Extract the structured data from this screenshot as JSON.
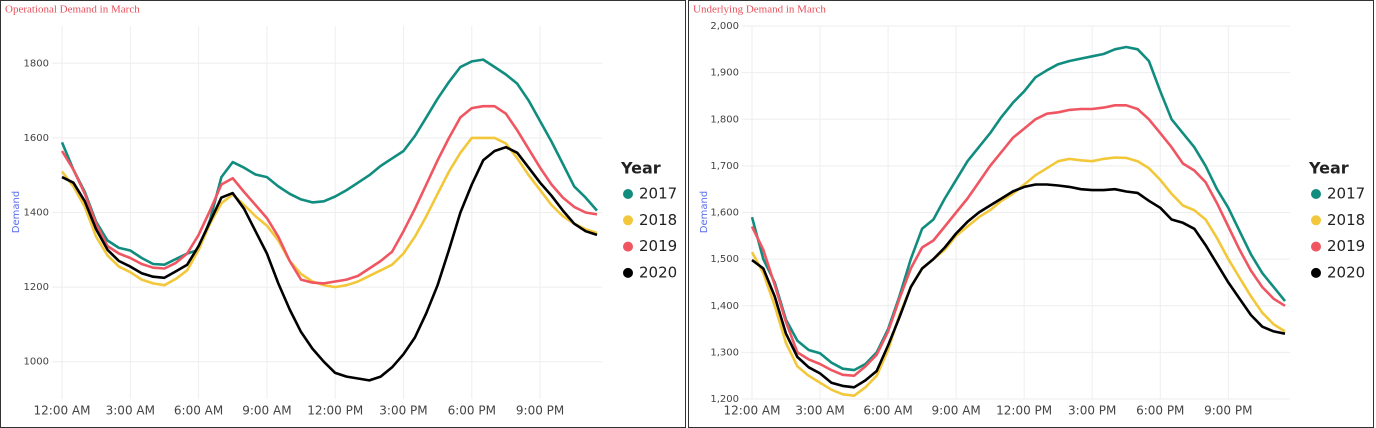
{
  "chart_data": [
    {
      "type": "line",
      "title": "Operational Demand in March",
      "y_label": "Demand",
      "legend_title": "Year",
      "categories": [
        "12:00 AM",
        null,
        null,
        null,
        null,
        null,
        "3:00 AM",
        null,
        null,
        null,
        null,
        null,
        "6:00 AM",
        null,
        null,
        null,
        null,
        null,
        "9:00 AM",
        null,
        null,
        null,
        null,
        null,
        "12:00 PM",
        null,
        null,
        null,
        null,
        null,
        "3:00 PM",
        null,
        null,
        null,
        null,
        null,
        "6:00 PM",
        null,
        null,
        null,
        null,
        null,
        "9:00 PM",
        null,
        null,
        null,
        null,
        null
      ],
      "ylim": [
        900,
        1900
      ],
      "yticks": [
        1000,
        1200,
        1400,
        1600,
        1800
      ],
      "grid": true,
      "series": [
        {
          "name": "2017",
          "color": "#118d80",
          "values": [
            1588,
            1515,
            1455,
            1375,
            1325,
            1305,
            1298,
            1278,
            1262,
            1260,
            1275,
            1290,
            1300,
            1380,
            1495,
            1535,
            1520,
            1502,
            1495,
            1470,
            1450,
            1435,
            1427,
            1430,
            1443,
            1460,
            1480,
            1500,
            1525,
            1545,
            1565,
            1605,
            1655,
            1705,
            1750,
            1790,
            1805,
            1810,
            1790,
            1770,
            1745,
            1700,
            1645,
            1590,
            1530,
            1470,
            1440,
            1405
          ]
        },
        {
          "name": "2018",
          "color": "#f2c83a",
          "values": [
            1510,
            1470,
            1415,
            1335,
            1285,
            1255,
            1240,
            1220,
            1210,
            1205,
            1222,
            1245,
            1300,
            1370,
            1425,
            1448,
            1420,
            1390,
            1365,
            1325,
            1270,
            1235,
            1215,
            1205,
            1200,
            1205,
            1215,
            1230,
            1245,
            1260,
            1290,
            1335,
            1390,
            1450,
            1510,
            1560,
            1600,
            1600,
            1600,
            1585,
            1545,
            1500,
            1460,
            1420,
            1390,
            1370,
            1355,
            1345
          ]
        },
        {
          "name": "2019",
          "color": "#ef5662",
          "values": [
            1565,
            1515,
            1450,
            1370,
            1310,
            1290,
            1278,
            1262,
            1252,
            1250,
            1265,
            1290,
            1340,
            1405,
            1475,
            1492,
            1455,
            1420,
            1385,
            1335,
            1270,
            1220,
            1212,
            1210,
            1215,
            1220,
            1230,
            1250,
            1270,
            1295,
            1350,
            1410,
            1475,
            1540,
            1600,
            1655,
            1680,
            1685,
            1685,
            1665,
            1620,
            1570,
            1520,
            1475,
            1440,
            1415,
            1400,
            1395
          ]
        },
        {
          "name": "2020",
          "color": "#000000",
          "values": [
            1495,
            1480,
            1430,
            1355,
            1300,
            1270,
            1255,
            1237,
            1228,
            1225,
            1242,
            1260,
            1310,
            1375,
            1440,
            1452,
            1410,
            1350,
            1290,
            1210,
            1140,
            1080,
            1035,
            1000,
            970,
            960,
            955,
            950,
            960,
            985,
            1020,
            1065,
            1130,
            1205,
            1300,
            1400,
            1475,
            1540,
            1565,
            1575,
            1560,
            1520,
            1480,
            1445,
            1405,
            1370,
            1350,
            1340
          ]
        }
      ]
    },
    {
      "type": "line",
      "title": "Underlying Demand in March",
      "y_label": "Demand",
      "legend_title": "Year",
      "categories": [
        "12:00 AM",
        null,
        null,
        null,
        null,
        null,
        "3:00 AM",
        null,
        null,
        null,
        null,
        null,
        "6:00 AM",
        null,
        null,
        null,
        null,
        null,
        "9:00 AM",
        null,
        null,
        null,
        null,
        null,
        "12:00 PM",
        null,
        null,
        null,
        null,
        null,
        "3:00 PM",
        null,
        null,
        null,
        null,
        null,
        "6:00 PM",
        null,
        null,
        null,
        null,
        null,
        "9:00 PM",
        null,
        null,
        null,
        null,
        null
      ],
      "ylim": [
        1200,
        2000
      ],
      "yticks": [
        {
          "value": 1200,
          "label": "1,200"
        },
        {
          "value": 1300,
          "label": "1,300"
        },
        {
          "value": 1400,
          "label": "1,400"
        },
        {
          "value": 1500,
          "label": "1,500"
        },
        {
          "value": 1600,
          "label": "1,600"
        },
        {
          "value": 1700,
          "label": "1,700"
        },
        {
          "value": 1800,
          "label": "1,800"
        },
        {
          "value": 1900,
          "label": "1,900"
        },
        {
          "value": 2000,
          "label": "2,000"
        }
      ],
      "grid": true,
      "series": [
        {
          "name": "2017",
          "color": "#118d80",
          "values": [
            1590,
            1500,
            1450,
            1370,
            1325,
            1305,
            1298,
            1278,
            1265,
            1262,
            1275,
            1300,
            1350,
            1420,
            1500,
            1565,
            1585,
            1630,
            1670,
            1710,
            1740,
            1770,
            1805,
            1835,
            1860,
            1890,
            1905,
            1918,
            1925,
            1930,
            1935,
            1940,
            1950,
            1955,
            1950,
            1925,
            1860,
            1800,
            1770,
            1740,
            1700,
            1650,
            1610,
            1560,
            1510,
            1470,
            1440,
            1410
          ]
        },
        {
          "name": "2018",
          "color": "#f2c83a",
          "values": [
            1515,
            1470,
            1400,
            1320,
            1270,
            1250,
            1235,
            1220,
            1210,
            1207,
            1225,
            1250,
            1305,
            1380,
            1440,
            1480,
            1500,
            1520,
            1550,
            1570,
            1590,
            1605,
            1625,
            1640,
            1660,
            1680,
            1695,
            1710,
            1715,
            1712,
            1710,
            1715,
            1718,
            1717,
            1710,
            1695,
            1670,
            1640,
            1615,
            1605,
            1585,
            1545,
            1500,
            1460,
            1420,
            1385,
            1360,
            1345
          ]
        },
        {
          "name": "2019",
          "color": "#ef5662",
          "values": [
            1570,
            1520,
            1445,
            1365,
            1300,
            1285,
            1275,
            1262,
            1252,
            1250,
            1270,
            1295,
            1345,
            1415,
            1480,
            1525,
            1540,
            1570,
            1600,
            1630,
            1665,
            1700,
            1730,
            1760,
            1780,
            1800,
            1812,
            1815,
            1820,
            1822,
            1822,
            1825,
            1830,
            1830,
            1822,
            1800,
            1770,
            1740,
            1705,
            1690,
            1665,
            1620,
            1570,
            1520,
            1475,
            1440,
            1415,
            1400
          ]
        },
        {
          "name": "2020",
          "color": "#000000",
          "values": [
            1498,
            1480,
            1420,
            1340,
            1290,
            1268,
            1255,
            1235,
            1228,
            1225,
            1240,
            1260,
            1315,
            1375,
            1440,
            1480,
            1500,
            1525,
            1555,
            1580,
            1600,
            1615,
            1630,
            1645,
            1655,
            1660,
            1660,
            1658,
            1655,
            1650,
            1648,
            1648,
            1650,
            1645,
            1642,
            1625,
            1610,
            1585,
            1578,
            1565,
            1530,
            1490,
            1450,
            1415,
            1380,
            1355,
            1345,
            1340
          ]
        }
      ]
    }
  ]
}
